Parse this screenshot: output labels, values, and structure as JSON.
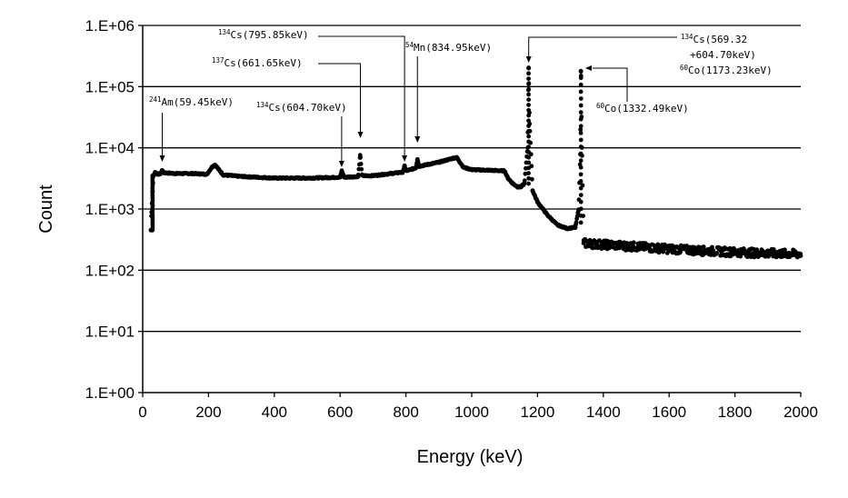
{
  "chart_data": {
    "type": "scatter",
    "xlabel": "Energy (keV)",
    "ylabel": "Count",
    "xlim": [
      0,
      2000
    ],
    "ylim": [
      1,
      1000000
    ],
    "yscale": "log",
    "grid": "horizontal",
    "x_ticks": [
      0,
      200,
      400,
      600,
      800,
      1000,
      1200,
      1400,
      1600,
      1800,
      2000
    ],
    "x_tick_labels": [
      "0",
      "200",
      "400",
      "600",
      "800",
      "1000",
      "1200",
      "1400",
      "1600",
      "1800",
      "2000"
    ],
    "y_ticks": [
      1,
      10,
      100,
      1000,
      10000,
      100000,
      1000000
    ],
    "y_tick_labels": [
      "1.E+00",
      "1.E+01",
      "1.E+02",
      "1.E+03",
      "1.E+04",
      "1.E+05",
      "1.E+06"
    ],
    "marker_color": "#000000",
    "spectrum_outline": [
      [
        25,
        450
      ],
      [
        27,
        900
      ],
      [
        30,
        2000
      ],
      [
        33,
        3500
      ],
      [
        38,
        4000
      ],
      [
        45,
        3700
      ],
      [
        55,
        3800
      ],
      [
        59,
        4300
      ],
      [
        65,
        3900
      ],
      [
        100,
        3800
      ],
      [
        150,
        3800
      ],
      [
        195,
        3700
      ],
      [
        210,
        4800
      ],
      [
        220,
        5300
      ],
      [
        230,
        4500
      ],
      [
        245,
        3600
      ],
      [
        300,
        3400
      ],
      [
        400,
        3200
      ],
      [
        500,
        3200
      ],
      [
        600,
        3300
      ],
      [
        605,
        4200
      ],
      [
        612,
        3300
      ],
      [
        655,
        3400
      ],
      [
        661,
        7500
      ],
      [
        667,
        3500
      ],
      [
        700,
        3500
      ],
      [
        790,
        4000
      ],
      [
        796,
        5000
      ],
      [
        802,
        4200
      ],
      [
        830,
        4700
      ],
      [
        835,
        6600
      ],
      [
        840,
        5000
      ],
      [
        900,
        5800
      ],
      [
        945,
        6800
      ],
      [
        955,
        6900
      ],
      [
        975,
        4800
      ],
      [
        1000,
        4400
      ],
      [
        1050,
        4300
      ],
      [
        1100,
        4200
      ],
      [
        1110,
        3200
      ],
      [
        1125,
        2600
      ],
      [
        1140,
        2300
      ],
      [
        1150,
        2300
      ],
      [
        1160,
        2600
      ],
      [
        1170,
        10000
      ],
      [
        1173,
        200000
      ],
      [
        1176,
        25000
      ],
      [
        1185,
        2000
      ],
      [
        1200,
        1300
      ],
      [
        1230,
        800
      ],
      [
        1260,
        550
      ],
      [
        1290,
        480
      ],
      [
        1315,
        500
      ],
      [
        1325,
        1000
      ],
      [
        1330,
        8000
      ],
      [
        1332,
        180000
      ],
      [
        1335,
        10000
      ],
      [
        1340,
        280
      ],
      [
        1400,
        265
      ],
      [
        1500,
        245
      ],
      [
        1600,
        225
      ],
      [
        1700,
        210
      ],
      [
        1800,
        200
      ],
      [
        1900,
        190
      ],
      [
        2000,
        185
      ]
    ],
    "annotations": [
      {
        "sup": "241",
        "label": "Am(59.45keV)",
        "energy": 59.45
      },
      {
        "sup": "134",
        "label": "Cs(604.70keV)",
        "energy": 604.7
      },
      {
        "sup": "137",
        "label": "Cs(661.65keV)",
        "energy": 661.65
      },
      {
        "sup": "134",
        "label": "Cs(795.85keV)",
        "energy": 795.85
      },
      {
        "sup": "54",
        "label": "Mn(834.95keV)",
        "energy": 834.95
      },
      {
        "sup": "134",
        "label": "Cs(569.32",
        "label2": "+604.70keV)",
        "sup3": "60",
        "label3": "Co(1173.23keV)",
        "energy": 1173.23
      },
      {
        "sup": "60",
        "label": "Co(1332.49keV)",
        "energy": 1332.49
      }
    ]
  }
}
